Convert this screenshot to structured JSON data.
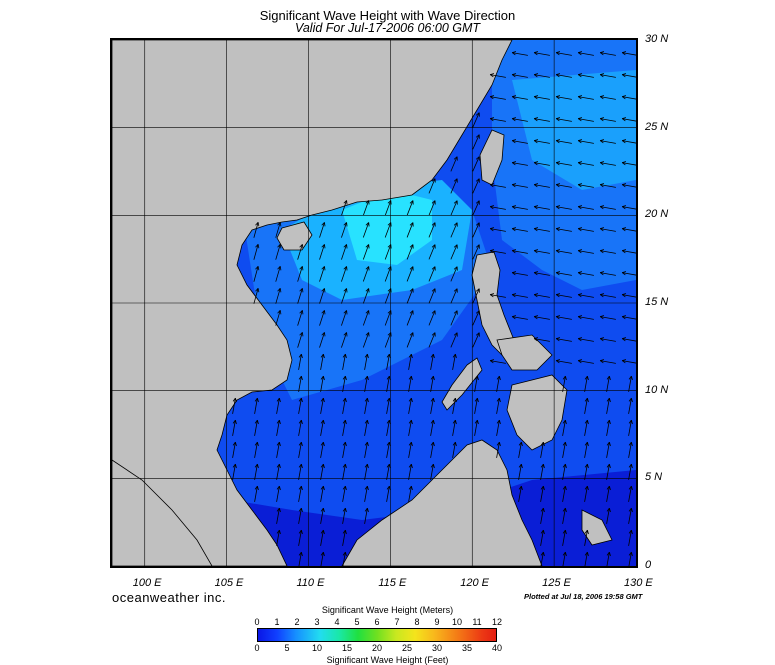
{
  "header": {
    "title": "Significant Wave Height with Wave Direction",
    "subtitle": "Valid For Jul-17-2006 06:00 GMT"
  },
  "map": {
    "extent": {
      "lon_min": 98,
      "lon_max": 130,
      "lat_min": 0,
      "lat_max": 30
    },
    "lat_labels": [
      "30 N",
      "25 N",
      "20 N",
      "15 N",
      "10 N",
      "5 N",
      "0"
    ],
    "lon_labels": [
      "100 E",
      "105 E",
      "110 E",
      "115 E",
      "120 E",
      "125 E",
      "130 E"
    ],
    "colors": {
      "land": "#c0c0c0",
      "ocean_base": "#0f4cf0",
      "ocean_dark": "#0a1ed6",
      "ocean_mid": "#1874f8",
      "ocean_light": "#1ab2ff",
      "ocean_cyan": "#28e2ff",
      "vector": "#000000"
    },
    "wave_vectors_note_icon": "arrow-icon"
  },
  "footer": {
    "brand": "oceanweather inc.",
    "plotted": "Plotted at Jul 18, 2006 19:58 GMT"
  },
  "colorbar": {
    "title_top": "Significant Wave Height (Meters)",
    "title_bottom": "Significant Wave Height (Feet)",
    "meters_ticks": [
      "0",
      "1",
      "2",
      "3",
      "4",
      "5",
      "6",
      "7",
      "8",
      "9",
      "10",
      "11",
      "12"
    ],
    "feet_ticks": [
      "0",
      "5",
      "10",
      "15",
      "20",
      "25",
      "30",
      "35",
      "40"
    ]
  }
}
